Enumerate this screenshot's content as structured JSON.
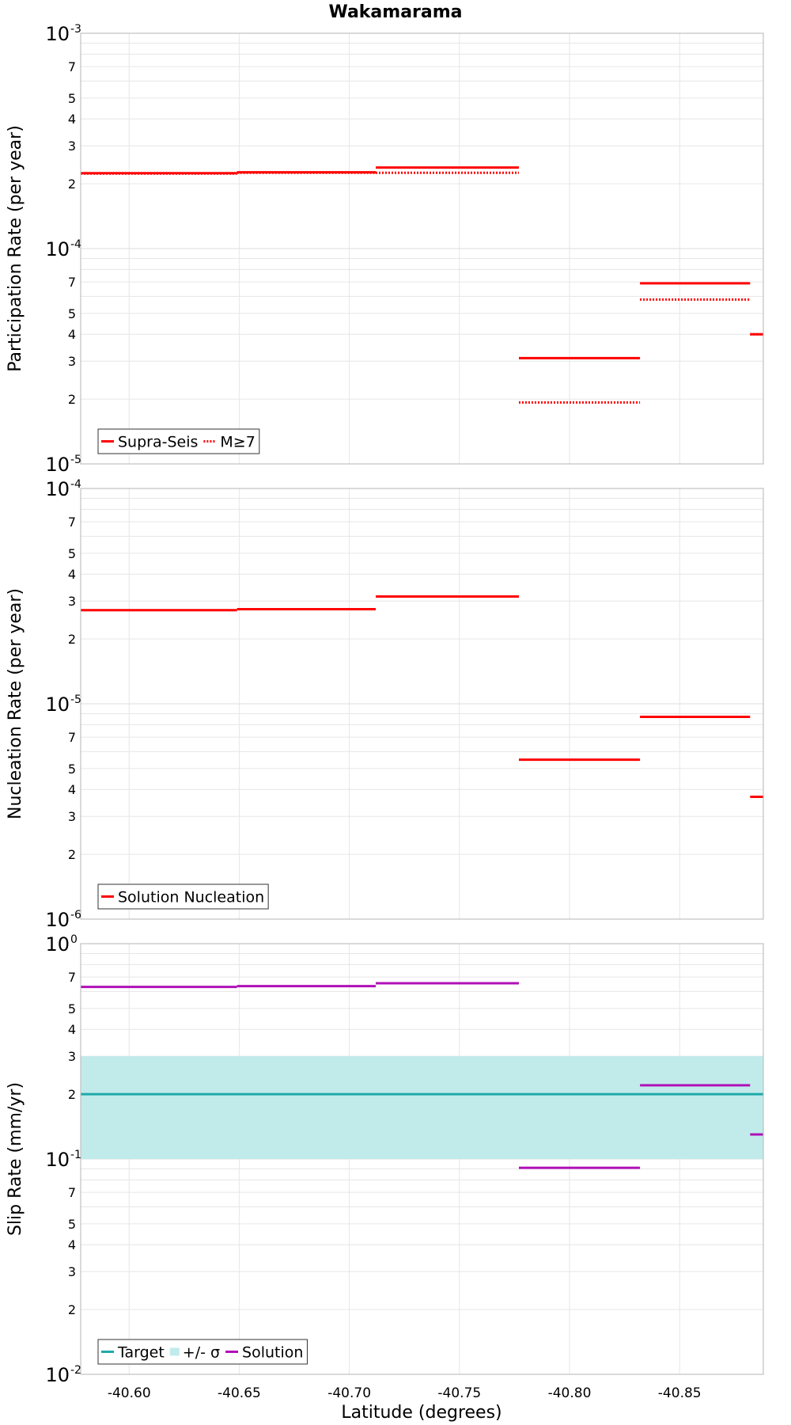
{
  "chart_data": {
    "type": "line",
    "title": "Wakamarama",
    "xlabel": "Latitude (degrees)",
    "x_reversed": true,
    "xlim": [
      -40.578,
      -40.888
    ],
    "x_ticks": [
      -40.6,
      -40.65,
      -40.7,
      -40.75,
      -40.8,
      -40.85
    ],
    "x_tick_labels": [
      "-40.60",
      "-40.65",
      "-40.70",
      "-40.75",
      "-40.80",
      "-40.85"
    ],
    "grid": true,
    "panels": [
      {
        "ylabel": "Participation Rate (per year)",
        "yscale": "log",
        "ylim": [
          1e-05,
          0.001
        ],
        "decades": [
          {
            "base": "10",
            "exp": "-5"
          },
          {
            "base": "10",
            "exp": "-4"
          },
          {
            "base": "10",
            "exp": "-3"
          }
        ],
        "minor_tick_labels": [
          "2",
          "3",
          "4",
          "5",
          "7"
        ],
        "legend": {
          "position": "bottom-left",
          "items": [
            {
              "label": "Supra-Seis",
              "style": "solid",
              "color": "#ff0000"
            },
            {
              "label": "M≥7",
              "style": "dotted",
              "color": "#ff0000"
            }
          ]
        },
        "series": [
          {
            "name": "Supra-Seis",
            "color": "#ff0000",
            "style": "solid",
            "segments": [
              {
                "x": [
                  -40.578,
                  -40.649
                ],
                "y": 0.000224
              },
              {
                "x": [
                  -40.649,
                  -40.712
                ],
                "y": 0.000226
              },
              {
                "x": [
                  -40.712,
                  -40.777
                ],
                "y": 0.000238
              },
              {
                "x": [
                  -40.777,
                  -40.832
                ],
                "y": 3.1e-05
              },
              {
                "x": [
                  -40.832,
                  -40.882
                ],
                "y": 6.9e-05
              },
              {
                "x": [
                  -40.882,
                  -40.888
                ],
                "y": 4e-05
              }
            ]
          },
          {
            "name": "M≥7",
            "color": "#ff0000",
            "style": "dotted",
            "segments": [
              {
                "x": [
                  -40.578,
                  -40.649
                ],
                "y": 0.000223
              },
              {
                "x": [
                  -40.649,
                  -40.712
                ],
                "y": 0.000225
              },
              {
                "x": [
                  -40.712,
                  -40.777
                ],
                "y": 0.000225
              },
              {
                "x": [
                  -40.777,
                  -40.832
                ],
                "y": 1.93e-05
              },
              {
                "x": [
                  -40.832,
                  -40.882
                ],
                "y": 5.8e-05
              },
              {
                "x": [
                  -40.882,
                  -40.888
                ],
                "y": 4e-05
              }
            ]
          }
        ]
      },
      {
        "ylabel": "Nucleation Rate (per year)",
        "yscale": "log",
        "ylim": [
          1e-06,
          0.0001
        ],
        "decades": [
          {
            "base": "10",
            "exp": "-6"
          },
          {
            "base": "10",
            "exp": "-5"
          },
          {
            "base": "10",
            "exp": "-4"
          }
        ],
        "minor_tick_labels": [
          "2",
          "3",
          "4",
          "5",
          "7"
        ],
        "legend": {
          "position": "bottom-left",
          "items": [
            {
              "label": "Solution Nucleation",
              "style": "solid",
              "color": "#ff0000"
            }
          ]
        },
        "series": [
          {
            "name": "Solution Nucleation",
            "color": "#ff0000",
            "style": "solid",
            "segments": [
              {
                "x": [
                  -40.578,
                  -40.649
                ],
                "y": 2.72e-05
              },
              {
                "x": [
                  -40.649,
                  -40.712
                ],
                "y": 2.75e-05
              },
              {
                "x": [
                  -40.712,
                  -40.777
                ],
                "y": 3.15e-05
              },
              {
                "x": [
                  -40.777,
                  -40.832
                ],
                "y": 5.5e-06
              },
              {
                "x": [
                  -40.832,
                  -40.882
                ],
                "y": 8.7e-06
              },
              {
                "x": [
                  -40.882,
                  -40.888
                ],
                "y": 3.7e-06
              }
            ]
          }
        ]
      },
      {
        "ylabel": "Slip Rate (mm/yr)",
        "yscale": "log",
        "ylim": [
          0.01,
          1
        ],
        "decades": [
          {
            "base": "10",
            "exp": "-2"
          },
          {
            "base": "10",
            "exp": "-1"
          },
          {
            "base": "10",
            "exp": "0"
          }
        ],
        "minor_tick_labels": [
          "2",
          "3",
          "4",
          "5",
          "7"
        ],
        "legend": {
          "position": "bottom-left",
          "items": [
            {
              "label": "Target",
              "style": "solid",
              "color": "#1fa9a9"
            },
            {
              "label": "+/- σ",
              "style": "band",
              "color": "#c1ebeb"
            },
            {
              "label": "Solution",
              "style": "solid",
              "color": "#b010b8"
            }
          ]
        },
        "band": {
          "name": "+/- σ",
          "color": "#c1ebeb",
          "x": [
            -40.578,
            -40.888
          ],
          "y": [
            0.1,
            0.3
          ]
        },
        "series": [
          {
            "name": "Target",
            "color": "#1fa9a9",
            "style": "solid",
            "segments": [
              {
                "x": [
                  -40.578,
                  -40.888
                ],
                "y": 0.2
              }
            ]
          },
          {
            "name": "Solution",
            "color": "#b010b8",
            "style": "solid",
            "segments": [
              {
                "x": [
                  -40.578,
                  -40.649
                ],
                "y": 0.63
              },
              {
                "x": [
                  -40.649,
                  -40.712
                ],
                "y": 0.635
              },
              {
                "x": [
                  -40.712,
                  -40.777
                ],
                "y": 0.655
              },
              {
                "x": [
                  -40.777,
                  -40.832
                ],
                "y": 0.091
              },
              {
                "x": [
                  -40.832,
                  -40.882
                ],
                "y": 0.22
              },
              {
                "x": [
                  -40.882,
                  -40.888
                ],
                "y": 0.13
              }
            ]
          }
        ]
      }
    ]
  }
}
